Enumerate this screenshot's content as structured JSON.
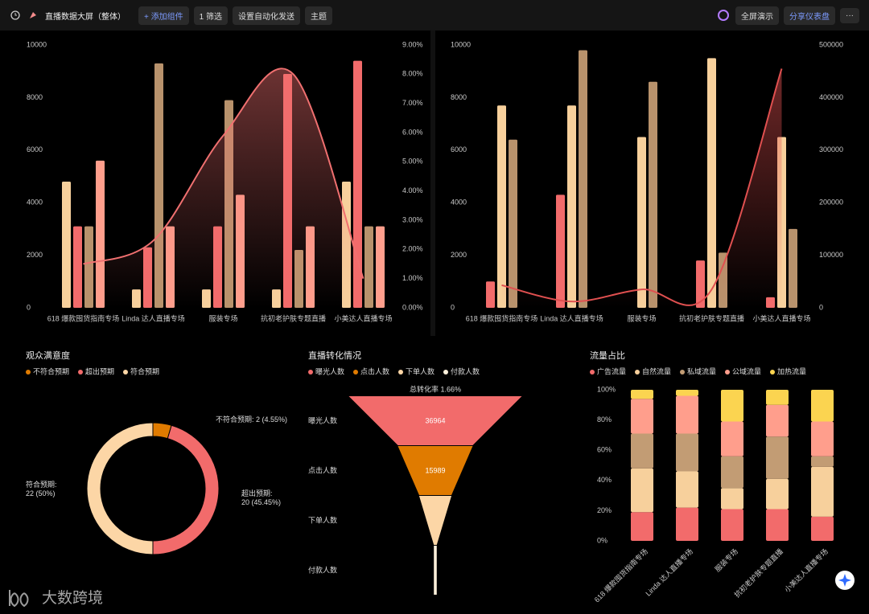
{
  "header": {
    "title": "直播数据大屏（整体）",
    "buttons": [
      "+ 添加组件",
      "1 筛选",
      "设置自动化发送",
      "主题"
    ],
    "right_buttons": [
      "全屏演示",
      "分享仪表盘"
    ]
  },
  "watermark": "大数跨境",
  "chart_data": [
    {
      "type": "bar_line",
      "categories": [
        "618 爆款囤货指南专场",
        "Linda 达人直播专场",
        "服装专场",
        "抗初老护肤专题直播",
        "小美达人直播专场"
      ],
      "series": [
        {
          "color": "#f7d09c",
          "values": [
            4800,
            700,
            700,
            700,
            4800
          ]
        },
        {
          "color": "#f26b6b",
          "values": [
            3100,
            2300,
            3100,
            8900,
            9400
          ]
        },
        {
          "color": "#b8926c",
          "values": [
            3100,
            9300,
            7900,
            2200,
            3100
          ]
        },
        {
          "color": "#ff9e8c",
          "values": [
            5600,
            3100,
            4300,
            3100,
            3100
          ]
        },
        {
          "type": "line",
          "axis": "y2",
          "color": "#f07070",
          "values": [
            1.5,
            2.3,
            5.9,
            8.0,
            1.0
          ]
        }
      ],
      "ylim": [
        0,
        10000
      ],
      "yticks": [
        0,
        2000,
        4000,
        6000,
        8000,
        10000
      ],
      "y2lim": [
        0,
        9
      ],
      "y2ticks": [
        {
          "value": 0,
          "label": "0.00%"
        },
        {
          "value": 1,
          "label": "1.00%"
        },
        {
          "value": 2,
          "label": "2.00%"
        },
        {
          "value": 3,
          "label": "3.00%"
        },
        {
          "value": 4,
          "label": "4.00%"
        },
        {
          "value": 5,
          "label": "5.00%"
        },
        {
          "value": 6,
          "label": "6.00%"
        },
        {
          "value": 7,
          "label": "7.00%"
        },
        {
          "value": 8,
          "label": "8.00%"
        },
        {
          "value": 9,
          "label": "9.00%"
        }
      ]
    },
    {
      "type": "bar_line",
      "categories": [
        "618 爆款囤货指南专场",
        "Linda 达人直播专场",
        "服装专场",
        "抗初老护肤专题直播",
        "小美达人直播专场"
      ],
      "series": [
        {
          "color": "#f26b6b",
          "values": [
            1000,
            4300,
            0,
            1800,
            400
          ]
        },
        {
          "color": "#f7d09c",
          "values": [
            7700,
            7700,
            6500,
            9500,
            6500
          ]
        },
        {
          "color": "#b8926c",
          "values": [
            6400,
            9800,
            8600,
            2100,
            3000
          ]
        },
        {
          "type": "line",
          "axis": "y2",
          "color": "#e05050",
          "values": [
            43000,
            12000,
            35000,
            35000,
            455000
          ]
        }
      ],
      "ylim": [
        0,
        10000
      ],
      "yticks": [
        0,
        2000,
        4000,
        6000,
        8000,
        10000
      ],
      "y2lim": [
        0,
        500000
      ],
      "y2ticks": [
        0,
        100000,
        200000,
        300000,
        400000,
        500000
      ]
    },
    {
      "type": "donut",
      "title": "观众满意度",
      "categories": [
        "不符合预期",
        "超出预期",
        "符合预期"
      ],
      "values": [
        2,
        20,
        22
      ],
      "colors": [
        "#e07b00",
        "#f26b6b",
        "#fcd6a6"
      ],
      "value_labels": [
        "不符合预期: 2 (4.55%)",
        "超出预期:\n20 (45.45%)",
        "符合预期:\n22 (50%)"
      ]
    },
    {
      "type": "funnel",
      "title": "直播转化情况",
      "categories": [
        "曝光人数",
        "点击人数",
        "下单人数",
        "付款人数"
      ],
      "values": [
        36964,
        15989,
        6900,
        614
      ],
      "colors": [
        "#f26b6b",
        "#e07b00",
        "#fcd6a6",
        "#fff1dc"
      ],
      "annotation": "总转化率 1.66%"
    },
    {
      "type": "stacked_bar_100",
      "title": "流量占比",
      "categories": [
        "618 爆款囤货指南专场",
        "Linda 达人直播专场",
        "服装专场",
        "抗初老护肤专题直播",
        "小美达人直播专场"
      ],
      "series": [
        {
          "name": "广告流量",
          "color": "#f26b6b",
          "values": [
            19,
            22,
            21,
            21,
            16
          ]
        },
        {
          "name": "自然流量",
          "color": "#f7d09c",
          "values": [
            29,
            24,
            14,
            20,
            33
          ]
        },
        {
          "name": "私域流量",
          "color": "#c29c74",
          "values": [
            23,
            25,
            21,
            28,
            7
          ]
        },
        {
          "name": "公域流量",
          "color": "#ff9e8c",
          "values": [
            23,
            25,
            23,
            21,
            23
          ]
        },
        {
          "name": "加热流量",
          "color": "#fbd450",
          "values": [
            6,
            4,
            21,
            10,
            21
          ]
        }
      ],
      "ylim": [
        0,
        100
      ],
      "yticks": [
        {
          "value": 0,
          "label": "0%"
        },
        {
          "value": 20,
          "label": "20%"
        },
        {
          "value": 40,
          "label": "40%"
        },
        {
          "value": 60,
          "label": "60%"
        },
        {
          "value": 80,
          "label": "80%"
        },
        {
          "value": 100,
          "label": "100%"
        }
      ]
    }
  ]
}
